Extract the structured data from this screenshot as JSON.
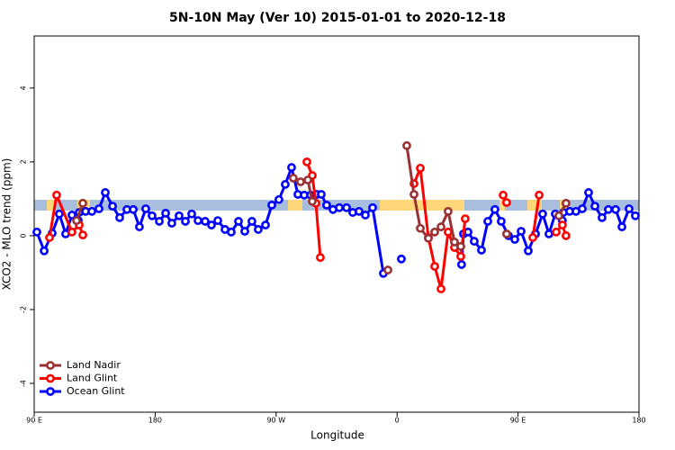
{
  "chart_data": {
    "type": "line",
    "title": "5N-10N May (Ver 10)   2015-01-01 to 2020-12-18",
    "x_label": "Longitude",
    "y_label": "XCO2 - MLO trend (ppm)",
    "xlim": [
      90,
      540
    ],
    "xticks": [
      {
        "value": 90,
        "label": "90 E"
      },
      180,
      {
        "value": 270,
        "label": "90 W"
      },
      {
        "value": 360,
        "label": "0"
      },
      {
        "value": 450,
        "label": "90 E"
      },
      {
        "value": 540,
        "label": "180"
      }
    ],
    "ylim": [
      -4.78,
      5.41
    ],
    "yticks": [
      -4,
      -2,
      0,
      2,
      4
    ],
    "legend": "bottom-left",
    "series": [
      {
        "name": "Land Nadir",
        "color": "#993333",
        "x": [
          121.5,
          126.2,
          null,
          282.8,
          288.2,
          293.6,
          296.9,
          null,
          353.2,
          null,
          367.2,
          372.6,
          377.3,
          383.3,
          388,
          392.7,
          398,
          402.7,
          407.4,
          null,
          441.5,
          null,
          480.4,
          485.7
        ],
        "values": [
          0.41,
          0.88,
          null,
          1.56,
          1.46,
          1.51,
          0.93,
          null,
          -0.93,
          null,
          2.44,
          1.12,
          0.2,
          -0.07,
          0.1,
          0.24,
          0.66,
          -0.17,
          -0.29,
          null,
          0.05,
          null,
          0.54,
          0.88
        ]
      },
      {
        "name": "Land Glint",
        "color": "#ff0000",
        "x": [
          101.4,
          106.7,
          118.1,
          123.5,
          126.2,
          null,
          292.9,
          296.9,
          299.6,
          302.9,
          null,
          372.6,
          377.3,
          383.3,
          388,
          392.7,
          398,
          402.7,
          407.4,
          410.7,
          null,
          438.9,
          441.5,
          null,
          461,
          465.7,
          null,
          478.4,
          483,
          485.7
        ],
        "values": [
          -0.05,
          1.1,
          0.1,
          0.29,
          0.02,
          null,
          2.0,
          1.63,
          0.88,
          -0.59,
          null,
          1.41,
          1.83,
          -0.05,
          -0.83,
          -1.44,
          0.1,
          -0.32,
          -0.56,
          0.46,
          null,
          1.1,
          0.9,
          null,
          -0.05,
          1.1,
          null,
          0.1,
          0.29,
          0
        ]
      },
      {
        "name": "Ocean Glint",
        "color": "#0000ff",
        "x": [
          92,
          97.4,
          103.4,
          108.7,
          113.4,
          118.1,
          122.8,
          123.5,
          128.2,
          132.9,
          138.2,
          142.9,
          148.3,
          153.6,
          159,
          163.7,
          168.3,
          173,
          177.7,
          183.1,
          187.8,
          192.4,
          197.8,
          202.5,
          207.2,
          211.9,
          217.2,
          221.9,
          226.6,
          232,
          236.6,
          242,
          246.7,
          252,
          256.7,
          262.1,
          266.8,
          272.1,
          276.8,
          281.5,
          286.2,
          290.9,
          295.6,
          300.3,
          303.6,
          307.6,
          312.3,
          317,
          322.4,
          327,
          331.7,
          336.4,
          341.8,
          349.8,
          null,
          363.2,
          null,
          408,
          409.4,
          412.8,
          417.4,
          422.8,
          427.5,
          432.8,
          437.5,
          442.9,
          447.6,
          452.3,
          457.6,
          463,
          468.3,
          473,
          477.7,
          483,
          483.7,
          488.4,
          493.1,
          497.8,
          502.5,
          507.2,
          512.5,
          517.2,
          522.6,
          527.3,
          532.6,
          537.3
        ],
        "values": [
          0.1,
          -0.41,
          0.07,
          0.59,
          0.05,
          0.56,
          0.41,
          0.63,
          0.66,
          0.66,
          0.73,
          1.17,
          0.8,
          0.49,
          0.71,
          0.71,
          0.24,
          0.73,
          0.54,
          0.39,
          0.61,
          0.34,
          0.54,
          0.39,
          0.59,
          0.41,
          0.39,
          0.29,
          0.41,
          0.17,
          0.1,
          0.39,
          0.12,
          0.39,
          0.17,
          0.29,
          0.83,
          0.98,
          1.39,
          1.85,
          1.12,
          1.1,
          1.1,
          1.12,
          1.12,
          0.83,
          0.71,
          0.76,
          0.76,
          0.63,
          0.66,
          0.56,
          0.76,
          -1.02,
          null,
          -0.63,
          null,
          -0.78,
          0.05,
          0.1,
          -0.15,
          -0.39,
          0.39,
          0.71,
          0.39,
          0,
          -0.1,
          0.12,
          -0.41,
          0.05,
          0.59,
          0.05,
          0.59,
          0.41,
          0.63,
          0.66,
          0.66,
          0.73,
          1.17,
          0.8,
          0.49,
          0.71,
          0.71,
          0.24,
          0.73,
          0.54
        ]
      }
    ]
  }
}
